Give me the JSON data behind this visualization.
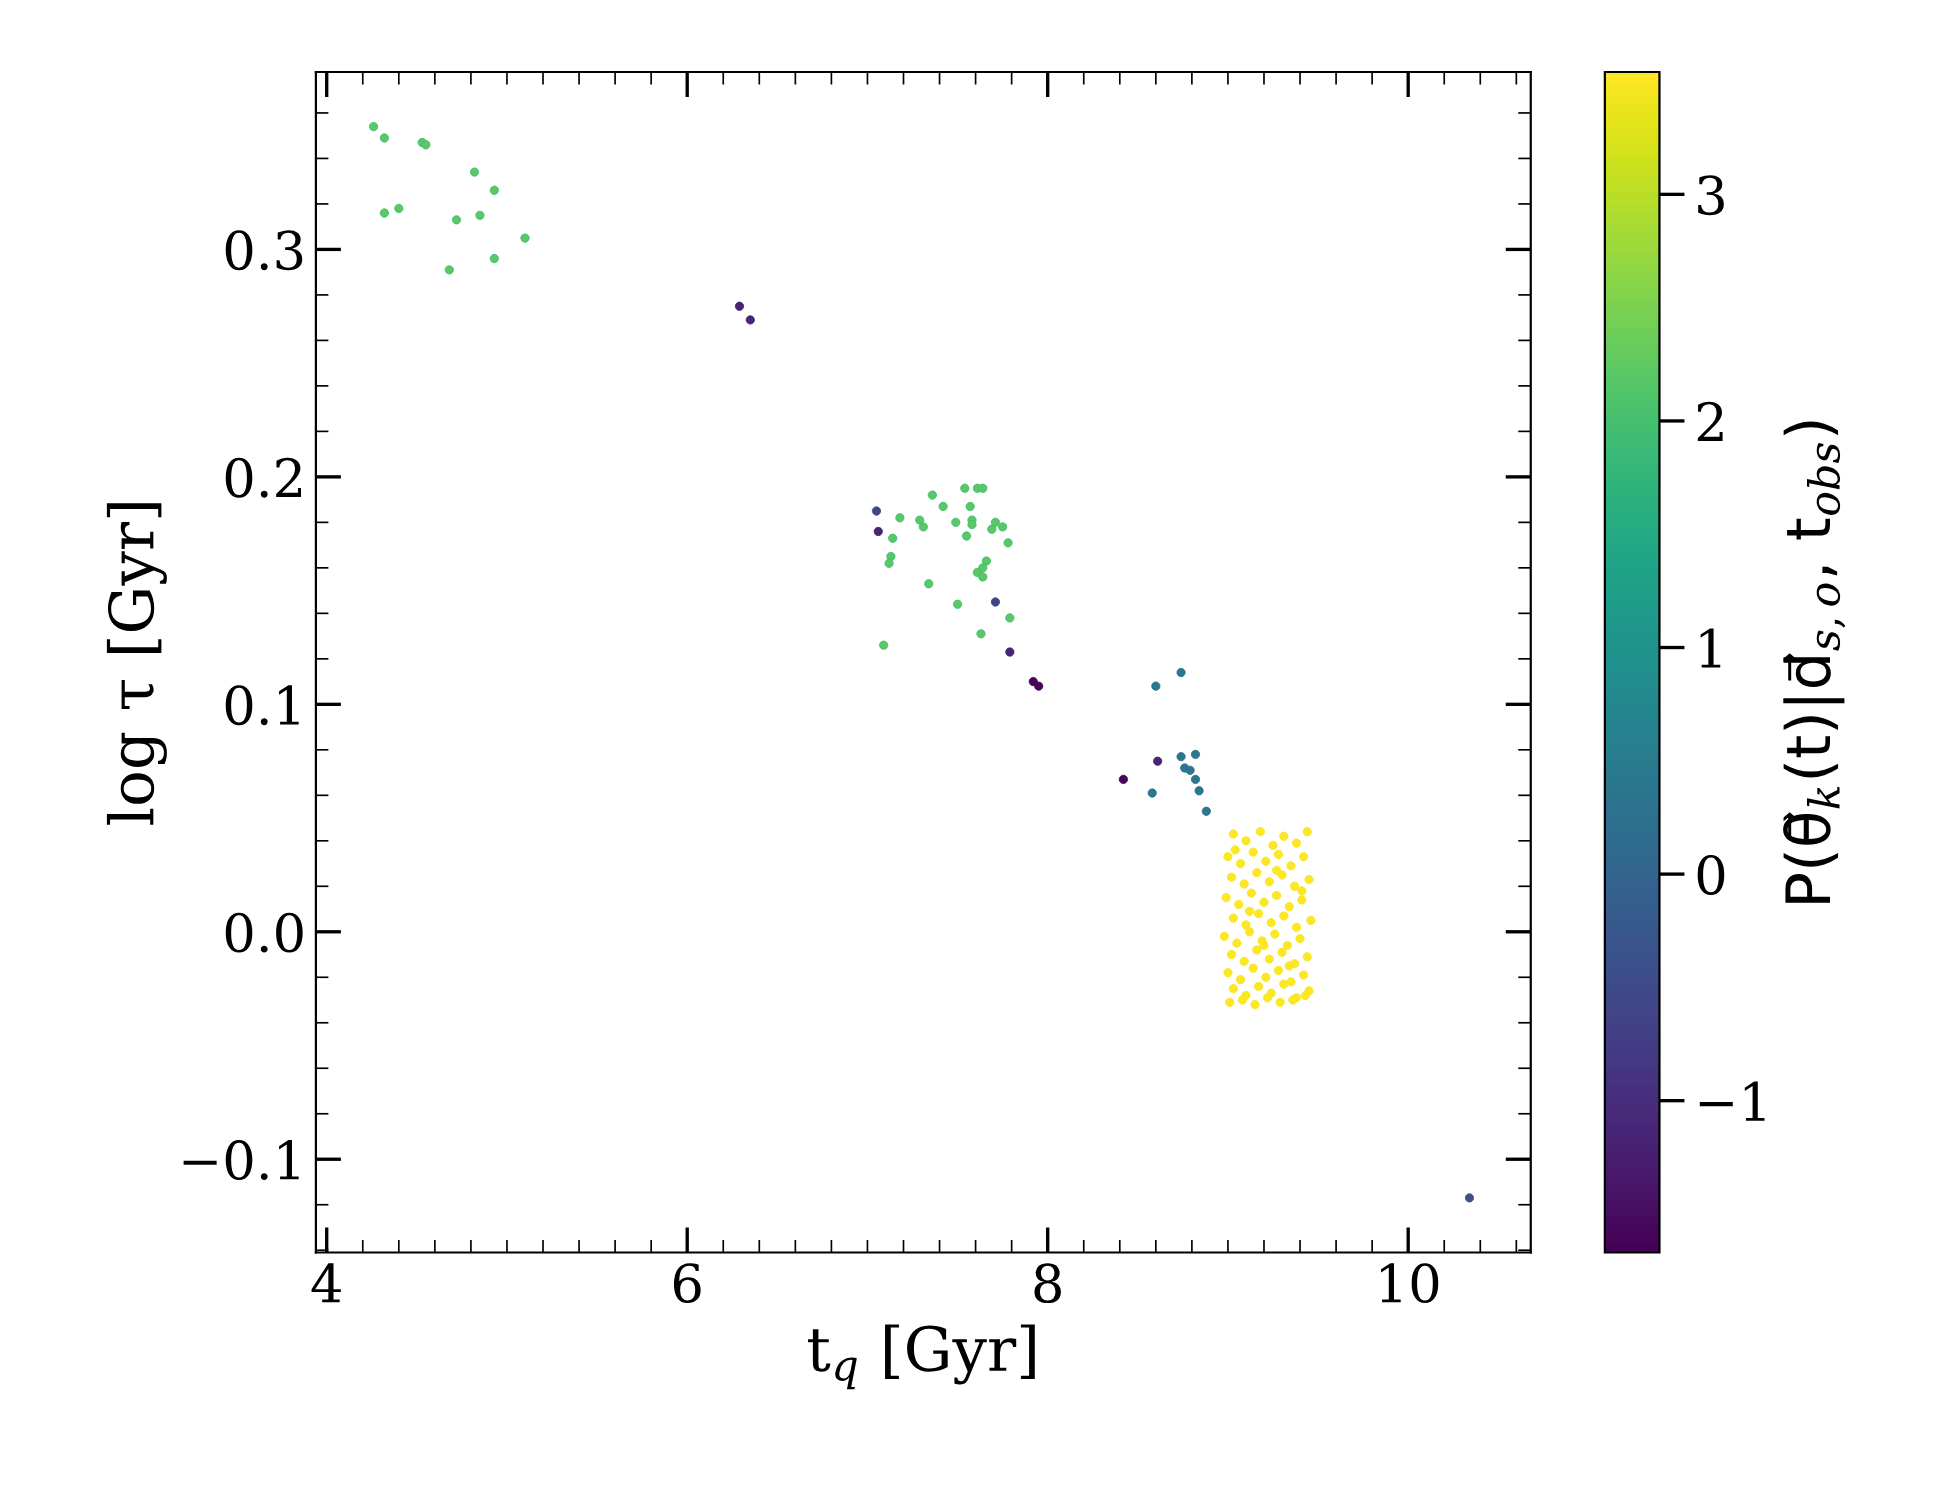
{
  "chart_data": {
    "type": "scatter",
    "xlabel": "t$_{q}$ [Gyr]",
    "ylabel": "log τ [Gyr]",
    "clabel": "P(θ⃗$_{k}$(t)|d⃗$_{s,o}$, t$_{obs}$)",
    "xlim": [
      3.94,
      10.68
    ],
    "ylim": [
      -0.141,
      0.378
    ],
    "xticks": [
      4,
      6,
      8,
      10
    ],
    "yticks": [
      {
        "value": -0.1,
        "label": "−0.1"
      },
      {
        "value": 0.0,
        "label": "0.0"
      },
      0.1,
      0.2,
      0.3
    ],
    "clim": [
      -1.67,
      3.54
    ],
    "cticks": [
      {
        "value": -1,
        "label": "−1"
      },
      0,
      1,
      2,
      3
    ],
    "grid": false,
    "marker": "circle",
    "series": [
      {
        "x": [
          4.26,
          4.32,
          4.53,
          4.55,
          4.82,
          4.93,
          4.32,
          4.4,
          4.72,
          4.85,
          5.1,
          4.93,
          4.68,
          6.29,
          6.35
        ],
        "values": [
          0.354,
          0.349,
          0.347,
          0.346,
          0.334,
          0.326,
          0.316,
          0.318,
          0.313,
          0.315,
          0.305,
          0.296,
          0.291,
          0.275,
          0.269
        ],
        "cvalues": [
          2.2,
          2.2,
          2.2,
          2.2,
          2.2,
          2.2,
          2.2,
          2.2,
          2.2,
          2.2,
          2.2,
          2.2,
          2.2,
          -1.15,
          -1.15
        ],
        "colors": [
          "#3dbc74",
          "#3dbc74",
          "#3dbc74",
          "#3dbc74",
          "#3dbc74",
          "#3dbc74",
          "#3dbc74",
          "#3dbc74",
          "#3dbc74",
          "#3dbc74",
          "#3dbc74",
          "#3dbc74",
          "#3dbc74",
          "#482475",
          "#482475"
        ]
      },
      {
        "x": [
          7.05,
          7.06,
          7.36,
          7.54,
          7.61,
          7.64,
          7.42,
          7.57,
          7.18,
          7.29,
          7.31,
          7.49,
          7.58,
          7.58,
          7.71,
          7.75,
          7.69,
          7.14,
          7.55,
          7.78,
          7.13,
          7.12,
          7.66,
          7.64,
          7.61,
          7.64,
          7.34,
          7.5,
          7.71,
          7.79,
          7.63,
          7.09,
          7.79,
          7.92,
          7.95
        ],
        "values": [
          0.185,
          0.176,
          0.192,
          0.195,
          0.195,
          0.195,
          0.187,
          0.187,
          0.182,
          0.181,
          0.178,
          0.18,
          0.181,
          0.179,
          0.18,
          0.178,
          0.177,
          0.173,
          0.174,
          0.171,
          0.165,
          0.162,
          0.163,
          0.16,
          0.158,
          0.156,
          0.153,
          0.144,
          0.145,
          0.138,
          0.131,
          0.126,
          0.123,
          0.11,
          0.108
        ],
        "cvalues": [
          -0.6,
          -1.15,
          2.2,
          2.2,
          2.2,
          2.2,
          2.2,
          2.2,
          2.2,
          2.2,
          2.2,
          2.2,
          2.2,
          2.2,
          2.2,
          2.2,
          2.2,
          2.2,
          2.2,
          2.2,
          2.2,
          2.2,
          2.2,
          2.2,
          2.2,
          2.2,
          2.2,
          2.2,
          -0.6,
          2.2,
          2.2,
          2.2,
          -1.15,
          -1.6,
          -1.6
        ],
        "colors": [
          "#414487",
          "#482475",
          "#3dbc74",
          "#3dbc74",
          "#3dbc74",
          "#3dbc74",
          "#3dbc74",
          "#3dbc74",
          "#3dbc74",
          "#3dbc74",
          "#3dbc74",
          "#3dbc74",
          "#3dbc74",
          "#3dbc74",
          "#3dbc74",
          "#3dbc74",
          "#3dbc74",
          "#3dbc74",
          "#3dbc74",
          "#3dbc74",
          "#3dbc74",
          "#3dbc74",
          "#3dbc74",
          "#3dbc74",
          "#3dbc74",
          "#3dbc74",
          "#3dbc74",
          "#3dbc74",
          "#414487",
          "#3dbc74",
          "#3dbc74",
          "#3dbc74",
          "#482475",
          "#450559",
          "#450559"
        ]
      },
      {
        "x": [
          8.6,
          8.74,
          8.61,
          8.42,
          8.74,
          8.82,
          8.76,
          8.79,
          8.82,
          8.58,
          8.84,
          8.88,
          10.34
        ],
        "values": [
          0.108,
          0.114,
          0.075,
          0.067,
          0.077,
          0.078,
          0.072,
          0.071,
          0.067,
          0.061,
          0.062,
          0.053,
          -0.117
        ],
        "cvalues": [
          0.4,
          0.4,
          -1.15,
          -1.6,
          0.4,
          0.4,
          0.4,
          0.4,
          0.4,
          0.4,
          0.4,
          0.4,
          -0.4
        ],
        "colors": [
          "#2c718e",
          "#2c718e",
          "#482475",
          "#450559",
          "#2c718e",
          "#2c718e",
          "#2c718e",
          "#2c718e",
          "#2c718e",
          "#2c718e",
          "#2c718e",
          "#2c718e",
          "#3b528b"
        ]
      },
      {
        "x": [
          9.03,
          9.1,
          9.18,
          9.25,
          9.31,
          9.38,
          9.44,
          9.0,
          9.07,
          9.14,
          9.21,
          9.28,
          9.35,
          9.42,
          9.02,
          9.09,
          9.16,
          9.23,
          9.3,
          9.37,
          9.45,
          8.99,
          9.06,
          9.13,
          9.2,
          9.27,
          9.34,
          9.41,
          9.03,
          9.1,
          9.17,
          9.24,
          9.31,
          9.38,
          9.46,
          8.98,
          9.05,
          9.12,
          9.19,
          9.26,
          9.33,
          9.4,
          9.02,
          9.09,
          9.16,
          9.23,
          9.3,
          9.37,
          9.44,
          9.0,
          9.07,
          9.14,
          9.21,
          9.28,
          9.35,
          9.42,
          9.03,
          9.1,
          9.17,
          9.24,
          9.31,
          9.38,
          9.45,
          9.01,
          9.08,
          9.15,
          9.22,
          9.29,
          9.36,
          9.43,
          9.04,
          9.12,
          9.2,
          9.27,
          9.34,
          9.41
        ],
        "values": [
          0.043,
          0.04,
          0.044,
          0.038,
          0.042,
          0.039,
          0.044,
          0.033,
          0.03,
          0.035,
          0.031,
          0.034,
          0.029,
          0.033,
          0.024,
          0.021,
          0.026,
          0.022,
          0.025,
          0.02,
          0.023,
          0.015,
          0.012,
          0.017,
          0.013,
          0.016,
          0.011,
          0.014,
          0.006,
          0.003,
          0.008,
          0.004,
          0.007,
          0.002,
          0.005,
          -0.002,
          -0.005,
          0.0,
          -0.004,
          -0.001,
          -0.006,
          -0.003,
          -0.01,
          -0.013,
          -0.008,
          -0.012,
          -0.009,
          -0.014,
          -0.011,
          -0.018,
          -0.021,
          -0.016,
          -0.02,
          -0.017,
          -0.022,
          -0.019,
          -0.025,
          -0.028,
          -0.024,
          -0.027,
          -0.023,
          -0.029,
          -0.026,
          -0.031,
          -0.03,
          -0.032,
          -0.029,
          -0.031,
          -0.03,
          -0.028,
          0.036,
          0.009,
          -0.006,
          0.027,
          -0.015,
          0.018
        ],
        "cvalues": [
          3.5,
          3.5,
          3.5,
          3.5,
          3.5,
          3.5,
          3.5,
          3.5,
          3.5,
          3.5,
          3.5,
          3.5,
          3.5,
          3.5,
          3.5,
          3.5,
          3.5,
          3.5,
          3.5,
          3.5,
          3.5,
          3.5,
          3.5,
          3.5,
          3.5,
          3.5,
          3.5,
          3.5,
          3.5,
          3.5,
          3.5,
          3.5,
          3.5,
          3.5,
          3.5,
          3.5,
          3.5,
          3.5,
          3.5,
          3.5,
          3.5,
          3.5,
          3.5,
          3.5,
          3.5,
          3.5,
          3.5,
          3.5,
          3.5,
          3.5,
          3.5,
          3.5,
          3.5,
          3.5,
          3.5,
          3.5,
          3.5,
          3.5,
          3.5,
          3.5,
          3.5,
          3.5,
          3.5,
          3.5,
          3.5,
          3.5,
          3.5,
          3.5,
          3.5,
          3.5,
          3.5,
          3.5,
          3.5,
          3.5,
          3.5,
          3.5
        ],
        "color": "#f8e621"
      }
    ]
  }
}
